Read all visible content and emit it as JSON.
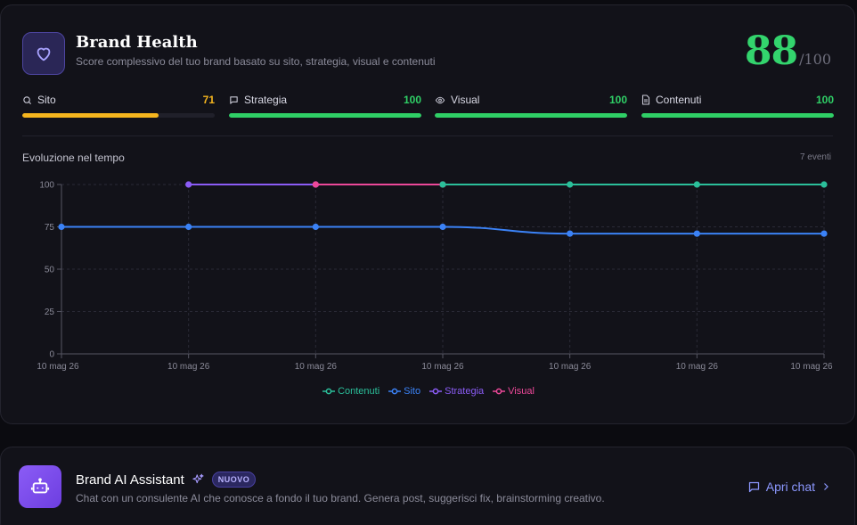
{
  "brand_health": {
    "title": "Brand Health",
    "subtitle": "Score complessivo del tuo brand basato su sito, strategia, visual e contenuti",
    "score": "88",
    "score_max": "/100",
    "metrics": [
      {
        "label": "Sito",
        "value": "71",
        "level": 0.71,
        "color": "#f5b51e",
        "icon": "search-icon"
      },
      {
        "label": "Strategia",
        "value": "100",
        "level": 1.0,
        "color": "#2fcf66",
        "icon": "message-square-icon"
      },
      {
        "label": "Visual",
        "value": "100",
        "level": 1.0,
        "color": "#2fcf66",
        "icon": "eye-icon"
      },
      {
        "label": "Contenuti",
        "value": "100",
        "level": 1.0,
        "color": "#2fcf66",
        "icon": "document-icon"
      }
    ],
    "chart_title": "Evoluzione nel tempo",
    "chart_events": "7 eventi"
  },
  "chart_data": {
    "type": "line",
    "x": [
      "10 mag 26",
      "10 mag 26",
      "10 mag 26",
      "10 mag 26",
      "10 mag 26",
      "10 mag 26",
      "10 mag 26"
    ],
    "y_ticks": [
      0,
      25,
      50,
      75,
      100
    ],
    "ylim": [
      0,
      100
    ],
    "grid": true,
    "legend_position": "bottom-center",
    "series": [
      {
        "name": "Contenuti",
        "color": "#2bbf9a",
        "values": [
          null,
          null,
          null,
          100,
          100,
          100,
          100
        ]
      },
      {
        "name": "Sito",
        "color": "#3b82f6",
        "values": [
          75,
          75,
          75,
          75,
          71,
          71,
          71
        ]
      },
      {
        "name": "Strategia",
        "color": "#8b5cf6",
        "values": [
          null,
          100,
          100,
          null,
          null,
          null,
          null
        ]
      },
      {
        "name": "Visual",
        "color": "#ec4899",
        "values": [
          null,
          null,
          100,
          100,
          null,
          null,
          null
        ]
      }
    ]
  },
  "assistant": {
    "title": "Brand AI Assistant",
    "badge": "NUOVO",
    "description": "Chat con un consulente AI che conosce a fondo il tuo brand. Genera post, suggerisci fix, brainstorming creativo.",
    "cta": "Apri chat"
  }
}
